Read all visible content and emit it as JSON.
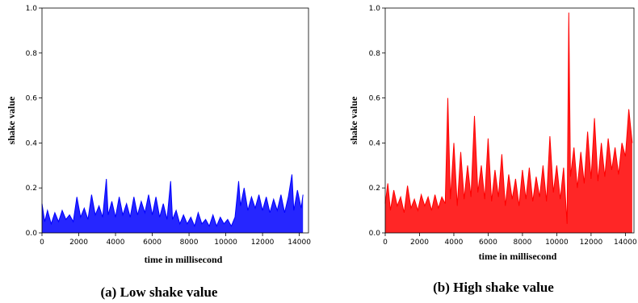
{
  "chart_data": [
    {
      "type": "line",
      "color": "#0000ff",
      "caption": "(a) Low shake value",
      "xlabel": "time in millisecond",
      "ylabel": "shake value",
      "xlim": [
        0,
        14500
      ],
      "ylim": [
        0,
        1.0
      ],
      "xticks": [
        0,
        2000,
        4000,
        6000,
        8000,
        10000,
        12000,
        14000
      ],
      "yticks": [
        0.0,
        0.2,
        0.4,
        0.6,
        0.8,
        1.0
      ],
      "ytick_labels": [
        "0.0",
        "0.2",
        "0.4",
        "0.6",
        "0.8",
        "1.0"
      ],
      "series": [
        {
          "x": [
            0,
            150,
            300,
            500,
            700,
            900,
            1100,
            1300,
            1500,
            1700,
            1900,
            2100,
            2300,
            2500,
            2700,
            2900,
            3100,
            3300,
            3500,
            3600,
            3800,
            4000,
            4200,
            4400,
            4600,
            4800,
            5000,
            5200,
            5400,
            5600,
            5800,
            6000,
            6200,
            6400,
            6600,
            6800,
            7000,
            7100,
            7300,
            7500,
            7700,
            7900,
            8100,
            8300,
            8500,
            8700,
            8900,
            9100,
            9300,
            9500,
            9700,
            9900,
            10100,
            10300,
            10500,
            10700,
            10800,
            11000,
            11200,
            11400,
            11600,
            11800,
            12000,
            12200,
            12400,
            12600,
            12800,
            13000,
            13200,
            13400,
            13600,
            13700,
            13900,
            14100,
            14200
          ],
          "y": [
            0.13,
            0.05,
            0.1,
            0.04,
            0.09,
            0.05,
            0.1,
            0.06,
            0.08,
            0.05,
            0.16,
            0.07,
            0.11,
            0.06,
            0.17,
            0.08,
            0.12,
            0.07,
            0.24,
            0.08,
            0.14,
            0.07,
            0.16,
            0.08,
            0.13,
            0.07,
            0.16,
            0.08,
            0.14,
            0.09,
            0.17,
            0.08,
            0.16,
            0.07,
            0.13,
            0.06,
            0.23,
            0.06,
            0.1,
            0.04,
            0.08,
            0.04,
            0.07,
            0.03,
            0.09,
            0.04,
            0.06,
            0.03,
            0.08,
            0.03,
            0.07,
            0.04,
            0.06,
            0.03,
            0.07,
            0.23,
            0.12,
            0.2,
            0.1,
            0.16,
            0.11,
            0.17,
            0.1,
            0.16,
            0.09,
            0.15,
            0.1,
            0.17,
            0.09,
            0.16,
            0.26,
            0.1,
            0.19,
            0.11,
            0.17
          ]
        }
      ]
    },
    {
      "type": "line",
      "color": "#ff0000",
      "caption": "(b) High shake value",
      "xlabel": "time in millisecond",
      "ylabel": "shake value",
      "xlim": [
        0,
        14500
      ],
      "ylim": [
        0,
        1.0
      ],
      "xticks": [
        0,
        2000,
        4000,
        6000,
        8000,
        10000,
        12000,
        14000
      ],
      "yticks": [
        0.0,
        0.2,
        0.4,
        0.6,
        0.8,
        1.0
      ],
      "ytick_labels": [
        "0.0",
        "0.2",
        "0.4",
        "0.6",
        "0.8",
        "1.0"
      ],
      "series": [
        {
          "x": [
            0,
            150,
            300,
            500,
            700,
            900,
            1100,
            1300,
            1500,
            1700,
            1900,
            2100,
            2300,
            2500,
            2700,
            2900,
            3100,
            3300,
            3500,
            3650,
            3800,
            4000,
            4200,
            4400,
            4600,
            4800,
            5000,
            5200,
            5400,
            5600,
            5800,
            6000,
            6200,
            6400,
            6600,
            6800,
            7000,
            7200,
            7400,
            7600,
            7800,
            8000,
            8200,
            8400,
            8600,
            8800,
            9000,
            9200,
            9400,
            9600,
            9800,
            10000,
            10200,
            10400,
            10600,
            10700,
            10800,
            11000,
            11200,
            11400,
            11600,
            11800,
            12000,
            12200,
            12400,
            12600,
            12800,
            13000,
            13200,
            13400,
            13600,
            13800,
            14000,
            14200,
            14400
          ],
          "y": [
            0.13,
            0.22,
            0.1,
            0.19,
            0.12,
            0.16,
            0.09,
            0.21,
            0.11,
            0.15,
            0.1,
            0.17,
            0.12,
            0.16,
            0.1,
            0.17,
            0.11,
            0.16,
            0.13,
            0.6,
            0.15,
            0.4,
            0.12,
            0.36,
            0.15,
            0.3,
            0.16,
            0.52,
            0.18,
            0.3,
            0.15,
            0.42,
            0.14,
            0.28,
            0.16,
            0.35,
            0.12,
            0.26,
            0.15,
            0.24,
            0.12,
            0.28,
            0.15,
            0.29,
            0.14,
            0.25,
            0.16,
            0.3,
            0.14,
            0.43,
            0.18,
            0.3,
            0.15,
            0.29,
            0.04,
            0.98,
            0.25,
            0.38,
            0.2,
            0.36,
            0.22,
            0.45,
            0.24,
            0.51,
            0.23,
            0.4,
            0.25,
            0.42,
            0.28,
            0.38,
            0.26,
            0.4,
            0.34,
            0.55,
            0.4
          ]
        }
      ]
    }
  ]
}
